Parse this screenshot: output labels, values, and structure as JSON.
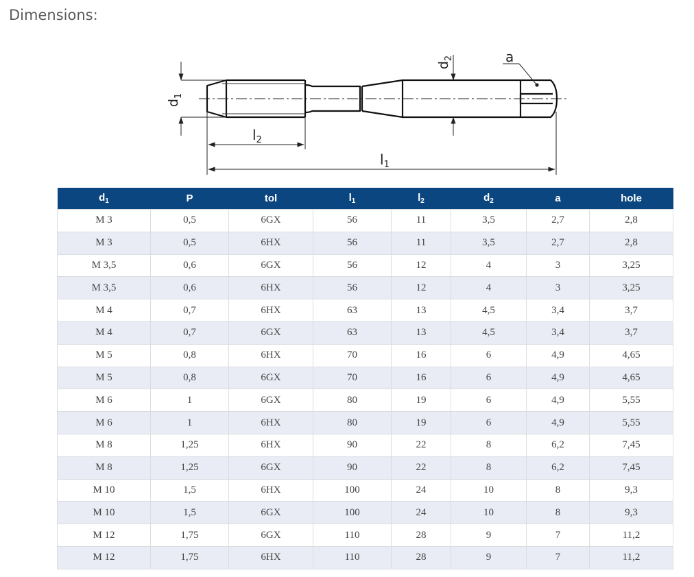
{
  "page": {
    "title": "Dimensions:"
  },
  "drawing": {
    "labels": {
      "d1": "d",
      "d1_sub": "1",
      "d2": "d",
      "d2_sub": "2",
      "l1": "l",
      "l1_sub": "1",
      "l2": "l",
      "l2_sub": "2",
      "a": "a"
    }
  },
  "table": {
    "headers": [
      {
        "text": "d",
        "sub": "1"
      },
      {
        "text": "P",
        "sub": ""
      },
      {
        "text": "tol",
        "sub": ""
      },
      {
        "text": "l",
        "sub": "1"
      },
      {
        "text": "l",
        "sub": "2"
      },
      {
        "text": "d",
        "sub": "2"
      },
      {
        "text": "a",
        "sub": ""
      },
      {
        "text": "hole",
        "sub": ""
      }
    ],
    "rows": [
      [
        "M 3",
        "0,5",
        "6GX",
        "56",
        "11",
        "3,5",
        "2,7",
        "2,8"
      ],
      [
        "M 3",
        "0,5",
        "6HX",
        "56",
        "11",
        "3,5",
        "2,7",
        "2,8"
      ],
      [
        "M 3,5",
        "0,6",
        "6GX",
        "56",
        "12",
        "4",
        "3",
        "3,25"
      ],
      [
        "M 3,5",
        "0,6",
        "6HX",
        "56",
        "12",
        "4",
        "3",
        "3,25"
      ],
      [
        "M 4",
        "0,7",
        "6HX",
        "63",
        "13",
        "4,5",
        "3,4",
        "3,7"
      ],
      [
        "M 4",
        "0,7",
        "6GX",
        "63",
        "13",
        "4,5",
        "3,4",
        "3,7"
      ],
      [
        "M 5",
        "0,8",
        "6HX",
        "70",
        "16",
        "6",
        "4,9",
        "4,65"
      ],
      [
        "M 5",
        "0,8",
        "6GX",
        "70",
        "16",
        "6",
        "4,9",
        "4,65"
      ],
      [
        "M 6",
        "1",
        "6GX",
        "80",
        "19",
        "6",
        "4,9",
        "5,55"
      ],
      [
        "M 6",
        "1",
        "6HX",
        "80",
        "19",
        "6",
        "4,9",
        "5,55"
      ],
      [
        "M 8",
        "1,25",
        "6HX",
        "90",
        "22",
        "8",
        "6,2",
        "7,45"
      ],
      [
        "M 8",
        "1,25",
        "6GX",
        "90",
        "22",
        "8",
        "6,2",
        "7,45"
      ],
      [
        "M 10",
        "1,5",
        "6HX",
        "100",
        "24",
        "10",
        "8",
        "9,3"
      ],
      [
        "M 10",
        "1,5",
        "6GX",
        "100",
        "24",
        "10",
        "8",
        "9,3"
      ],
      [
        "M 12",
        "1,75",
        "6GX",
        "110",
        "28",
        "9",
        "7",
        "11,2"
      ],
      [
        "M 12",
        "1,75",
        "6HX",
        "110",
        "28",
        "9",
        "7",
        "11,2"
      ]
    ]
  },
  "colors": {
    "header_bg": "#0b4680",
    "header_text": "#ffffff",
    "alt_row_bg": "#e9ecf4",
    "cell_border": "#d9dde2",
    "title_text": "#5a5a5a"
  }
}
